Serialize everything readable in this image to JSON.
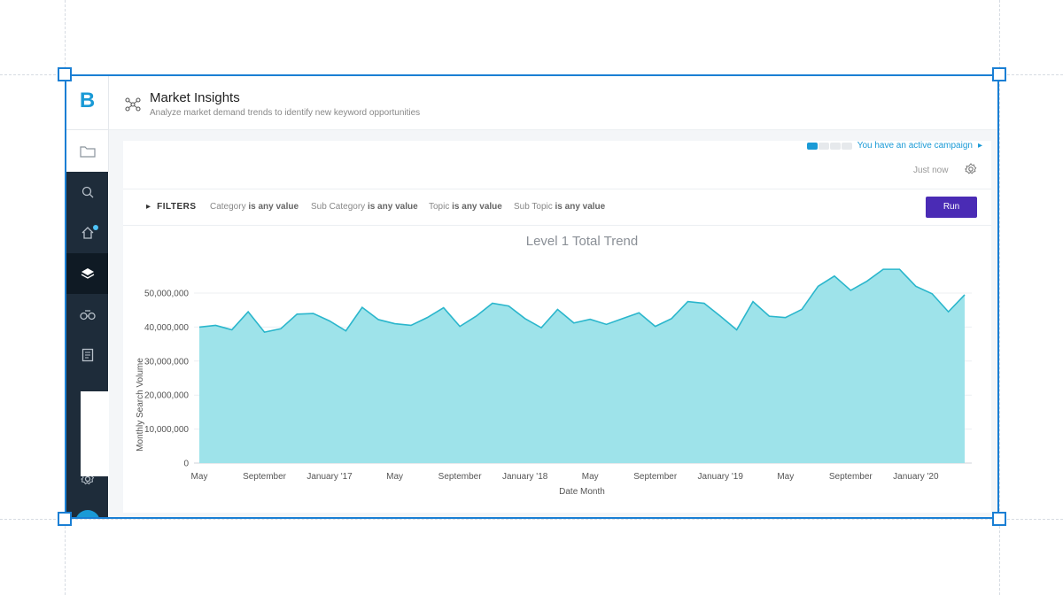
{
  "app": {
    "logo": "B",
    "title": "Market Insights",
    "subtitle": "Analyze market demand trends to identify new keyword opportunities"
  },
  "sidebar": {
    "items": [
      {
        "icon": "folder-icon"
      },
      {
        "icon": "search-icon"
      },
      {
        "icon": "home-icon",
        "badge": true
      },
      {
        "icon": "layers-icon",
        "active": true
      },
      {
        "icon": "binoculars-icon"
      },
      {
        "icon": "document-icon"
      },
      {
        "icon": "gear-icon"
      }
    ]
  },
  "campaign": {
    "text": "You have an active campaign",
    "progress_steps": 4,
    "progress_done": 1
  },
  "status": {
    "updated": "Just now"
  },
  "filters": {
    "toggle_label": "FILTERS",
    "items": [
      {
        "label": "Category",
        "value": "is any value"
      },
      {
        "label": "Sub Category",
        "value": "is any value"
      },
      {
        "label": "Topic",
        "value": "is any value"
      },
      {
        "label": "Sub Topic",
        "value": "is any value"
      }
    ],
    "run_label": "Run"
  },
  "colors": {
    "accent": "#1a9ad6",
    "run": "#4a2bb5",
    "area_fill": "#9ee3ea",
    "area_line": "#2ab6cc",
    "sidebar": "#1e2c3a"
  },
  "chart_data": {
    "type": "area",
    "title": "Level 1 Total Trend",
    "xlabel": "Date Month",
    "ylabel": "Monthly Search Volume",
    "ylim": [
      0,
      50000000
    ],
    "yticks": [
      0,
      10000000,
      20000000,
      30000000,
      40000000,
      50000000
    ],
    "ytick_labels": [
      "0",
      "10,000,000",
      "20,000,000",
      "30,000,000",
      "40,000,000",
      "50,000,000"
    ],
    "xtick_labels": [
      "May",
      "September",
      "January '17",
      "May",
      "September",
      "January '18",
      "May",
      "September",
      "January '19",
      "May",
      "September",
      "January '20"
    ],
    "xtick_index": [
      0,
      4,
      8,
      12,
      16,
      20,
      24,
      28,
      32,
      36,
      40,
      44
    ],
    "values": [
      40000000,
      40500000,
      39200000,
      44500000,
      38500000,
      39500000,
      43800000,
      44000000,
      41800000,
      38900000,
      45800000,
      42200000,
      41000000,
      40500000,
      42800000,
      45700000,
      40200000,
      43200000,
      47000000,
      46200000,
      42500000,
      39800000,
      45200000,
      41200000,
      42300000,
      40800000,
      42500000,
      44200000,
      40200000,
      42500000,
      47500000,
      47000000,
      43200000,
      39200000,
      47500000,
      43200000,
      42800000,
      45200000,
      52000000,
      55000000,
      50800000,
      53500000,
      57000000,
      57000000,
      52000000,
      49800000,
      44500000,
      49500000
    ],
    "grid": true
  }
}
